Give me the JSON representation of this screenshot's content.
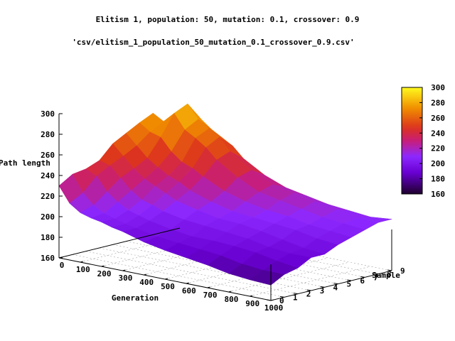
{
  "chart_data": {
    "type": "surface3d",
    "title": "Elitism 1, population: 50, mutation: 0.1, crossover: 0.9",
    "subtitle": "'csv/elitism_1_population_50_mutation_0.1_crossover_0.9.csv'",
    "xlabel": "Generation",
    "ylabel": "Sample",
    "zlabel": "Path length",
    "x_ticks": [
      0,
      100,
      200,
      300,
      400,
      500,
      600,
      700,
      800,
      900,
      1000
    ],
    "y_ticks": [
      0,
      1,
      2,
      3,
      4,
      5,
      6,
      7,
      8,
      9
    ],
    "z_ticks": [
      160,
      180,
      200,
      220,
      240,
      260,
      280,
      300
    ],
    "xlim": [
      0,
      1000
    ],
    "ylim": [
      0,
      9
    ],
    "zlim": [
      160,
      300
    ],
    "colorbar": {
      "min": 160,
      "max": 300,
      "ticks": [
        160,
        180,
        200,
        220,
        240,
        260,
        280,
        300
      ]
    },
    "x": [
      0,
      50,
      100,
      150,
      200,
      250,
      300,
      400,
      500,
      600,
      700,
      800,
      900,
      1000
    ],
    "series": [
      {
        "sample": 0,
        "values": [
          230,
          215,
          208,
          205,
          203,
          200,
          198,
          192,
          188,
          185,
          182,
          178,
          176,
          175
        ]
      },
      {
        "sample": 1,
        "values": [
          238,
          222,
          212,
          206,
          203,
          200,
          198,
          194,
          192,
          190,
          188,
          184,
          182,
          182
        ]
      },
      {
        "sample": 2,
        "values": [
          240,
          235,
          222,
          214,
          208,
          205,
          202,
          198,
          195,
          195,
          194,
          192,
          188,
          185
        ]
      },
      {
        "sample": 3,
        "values": [
          245,
          242,
          232,
          222,
          215,
          212,
          208,
          204,
          202,
          200,
          198,
          194,
          192,
          192
        ]
      },
      {
        "sample": 4,
        "values": [
          258,
          248,
          238,
          230,
          225,
          220,
          215,
          210,
          206,
          205,
          202,
          198,
          194,
          192
        ]
      },
      {
        "sample": 5,
        "values": [
          265,
          255,
          245,
          238,
          232,
          228,
          222,
          215,
          210,
          208,
          206,
          204,
          200,
          198
        ]
      },
      {
        "sample": 6,
        "values": [
          272,
          265,
          262,
          250,
          242,
          238,
          232,
          222,
          216,
          212,
          210,
          206,
          204,
          202
        ]
      },
      {
        "sample": 7,
        "values": [
          278,
          272,
          282,
          268,
          262,
          255,
          245,
          232,
          222,
          218,
          214,
          210,
          208,
          206
        ]
      },
      {
        "sample": 8,
        "values": [
          262,
          268,
          288,
          275,
          268,
          262,
          250,
          236,
          226,
          222,
          218,
          214,
          210,
          210
        ]
      },
      {
        "sample": 9,
        "values": [
          240,
          256,
          270,
          262,
          256,
          250,
          240,
          228,
          220,
          216,
          212,
          210,
          208,
          210
        ]
      }
    ]
  }
}
